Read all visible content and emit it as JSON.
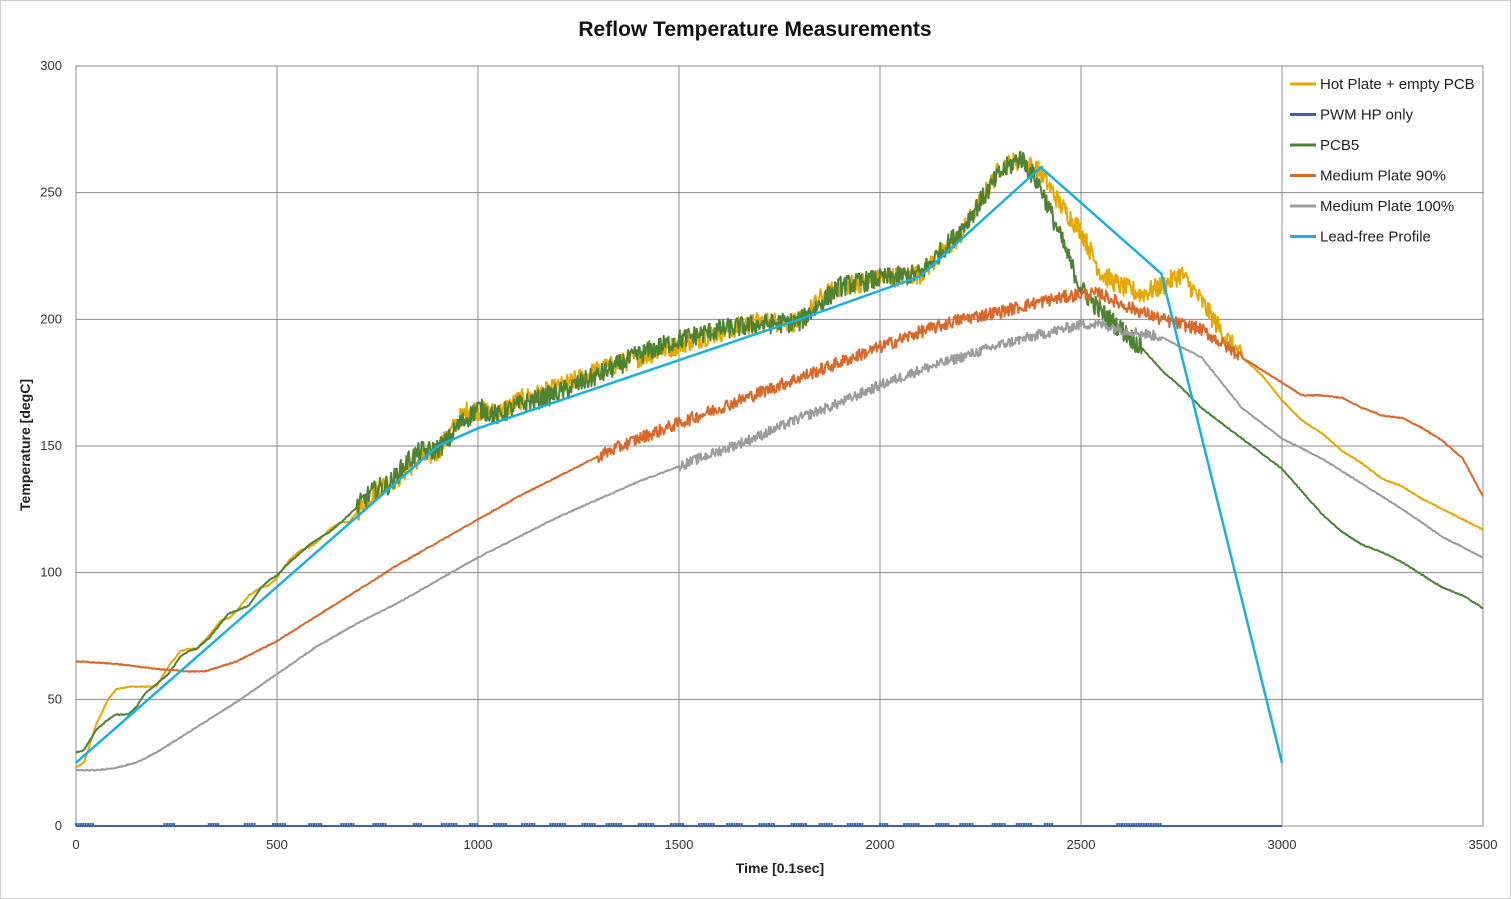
{
  "chart_data": {
    "type": "line",
    "title": "Reflow Temperature Measurements",
    "xlabel": "Time [0.1sec]",
    "ylabel": "Temperature [degC]",
    "xlim": [
      0,
      3500
    ],
    "ylim": [
      0,
      300
    ],
    "xticks": [
      0,
      500,
      1000,
      1500,
      2000,
      2500,
      3000,
      3500
    ],
    "yticks": [
      0,
      50,
      100,
      150,
      200,
      250,
      300
    ],
    "grid": true,
    "legend_position": "top-right",
    "series": [
      {
        "name": "Hot Plate + empty PCB",
        "color": "#E6A800",
        "noise": 4,
        "noise_ranges": [
          [
            700,
            2900
          ]
        ],
        "x": [
          0,
          20,
          50,
          80,
          100,
          130,
          160,
          200,
          230,
          260,
          280,
          300,
          330,
          360,
          380,
          400,
          430,
          460,
          480,
          500,
          530,
          560,
          580,
          600,
          630,
          660,
          680,
          700,
          730,
          760,
          780,
          800,
          830,
          860,
          880,
          900,
          930,
          950,
          980,
          1000,
          1050,
          1100,
          1200,
          1300,
          1400,
          1500,
          1600,
          1700,
          1800,
          1850,
          1900,
          2000,
          2100,
          2200,
          2300,
          2350,
          2400,
          2450,
          2500,
          2550,
          2600,
          2650,
          2700,
          2750,
          2800,
          2850,
          2900,
          2950,
          3000,
          3050,
          3100,
          3150,
          3200,
          3250,
          3300,
          3350,
          3400,
          3450,
          3500
        ],
        "y": [
          23,
          25,
          40,
          50,
          54,
          55,
          55,
          55,
          63,
          69,
          70,
          70,
          75,
          81,
          82,
          85,
          91,
          94,
          95,
          98,
          105,
          109,
          110,
          112,
          117,
          120,
          120,
          124,
          130,
          134,
          136,
          137,
          142,
          145,
          146,
          148,
          155,
          160,
          165,
          164,
          163,
          168,
          173,
          180,
          185,
          190,
          195,
          199,
          199,
          208,
          213,
          216,
          218,
          233,
          260,
          263,
          258,
          245,
          235,
          218,
          213,
          210,
          213,
          218,
          207,
          195,
          185,
          178,
          168,
          160,
          155,
          148,
          143,
          137,
          134,
          129,
          125,
          121,
          117
        ]
      },
      {
        "name": "PWM HP only",
        "color": "#3A62B0",
        "noise": 0,
        "x": [
          0,
          3000
        ],
        "y": [
          0,
          0
        ],
        "pulses": [
          [
            0,
            45
          ],
          [
            220,
            245
          ],
          [
            330,
            355
          ],
          [
            420,
            445
          ],
          [
            490,
            520
          ],
          [
            580,
            610
          ],
          [
            660,
            690
          ],
          [
            740,
            770
          ],
          [
            840,
            860
          ],
          [
            910,
            950
          ],
          [
            980,
            1000
          ],
          [
            1040,
            1070
          ],
          [
            1110,
            1140
          ],
          [
            1180,
            1220
          ],
          [
            1260,
            1290
          ],
          [
            1320,
            1360
          ],
          [
            1400,
            1440
          ],
          [
            1480,
            1510
          ],
          [
            1550,
            1590
          ],
          [
            1620,
            1660
          ],
          [
            1700,
            1740
          ],
          [
            1780,
            1820
          ],
          [
            1850,
            1880
          ],
          [
            1920,
            1960
          ],
          [
            2000,
            2020
          ],
          [
            2060,
            2100
          ],
          [
            2140,
            2170
          ],
          [
            2200,
            2230
          ],
          [
            2280,
            2310
          ],
          [
            2340,
            2380
          ],
          [
            2410,
            2430
          ],
          [
            2590,
            2700
          ]
        ]
      },
      {
        "name": "PCB5",
        "color": "#4E8235",
        "noise": 4,
        "noise_ranges": [
          [
            700,
            2650
          ]
        ],
        "x": [
          0,
          20,
          50,
          80,
          100,
          130,
          150,
          170,
          200,
          230,
          260,
          280,
          300,
          330,
          360,
          380,
          400,
          430,
          460,
          480,
          500,
          530,
          560,
          580,
          600,
          630,
          660,
          680,
          700,
          730,
          760,
          780,
          800,
          830,
          860,
          880,
          900,
          930,
          950,
          980,
          1000,
          1050,
          1100,
          1200,
          1300,
          1400,
          1500,
          1600,
          1700,
          1800,
          1850,
          1900,
          2000,
          2100,
          2200,
          2300,
          2350,
          2400,
          2450,
          2500,
          2550,
          2600,
          2650,
          2700,
          2750,
          2800,
          2850,
          2900,
          2950,
          3000,
          3050,
          3100,
          3150,
          3200,
          3250,
          3300,
          3350,
          3400,
          3450,
          3500
        ],
        "y": [
          29,
          30,
          38,
          42,
          44,
          44,
          47,
          52,
          56,
          60,
          67,
          69,
          70,
          74,
          80,
          84,
          85,
          87,
          94,
          97,
          99,
          104,
          108,
          111,
          113,
          116,
          120,
          123,
          126,
          131,
          134,
          135,
          139,
          145,
          148,
          148,
          149,
          153,
          158,
          162,
          165,
          162,
          166,
          171,
          178,
          186,
          192,
          196,
          198,
          199,
          206,
          213,
          216,
          218,
          235,
          258,
          264,
          252,
          232,
          212,
          203,
          196,
          189,
          180,
          173,
          165,
          159,
          153,
          147,
          141,
          132,
          123,
          116,
          111,
          108,
          104,
          99,
          94,
          91,
          86
        ]
      },
      {
        "name": "Medium Plate 90%",
        "color": "#D9692A",
        "noise": 2.5,
        "noise_ranges": [
          [
            1300,
            2900
          ]
        ],
        "x": [
          0,
          100,
          200,
          280,
          320,
          400,
          500,
          600,
          700,
          800,
          900,
          1000,
          1100,
          1200,
          1300,
          1400,
          1500,
          1600,
          1700,
          1800,
          1900,
          2000,
          2100,
          2200,
          2300,
          2400,
          2500,
          2550,
          2600,
          2700,
          2800,
          2900,
          3000,
          3050,
          3100,
          3150,
          3200,
          3250,
          3300,
          3350,
          3400,
          3450,
          3500
        ],
        "y": [
          65,
          64,
          62,
          61,
          61,
          65,
          73,
          83,
          93,
          103,
          112,
          121,
          130,
          138,
          146,
          153,
          159,
          165,
          171,
          177,
          183,
          189,
          195,
          200,
          203,
          207,
          210,
          210,
          206,
          200,
          196,
          185,
          175,
          170,
          170,
          169,
          165,
          162,
          161,
          157,
          152,
          145,
          130
        ]
      },
      {
        "name": "Medium Plate 100%",
        "color": "#9C9C9C",
        "noise": 2,
        "noise_ranges": [
          [
            1500,
            2700
          ]
        ],
        "x": [
          0,
          50,
          100,
          150,
          200,
          300,
          400,
          500,
          600,
          700,
          800,
          900,
          1000,
          1100,
          1200,
          1300,
          1400,
          1500,
          1600,
          1700,
          1800,
          1900,
          2000,
          2100,
          2200,
          2300,
          2400,
          2500,
          2550,
          2600,
          2700,
          2800,
          2900,
          3000,
          3050,
          3100,
          3200,
          3300,
          3400,
          3500
        ],
        "y": [
          22,
          22,
          23,
          25,
          29,
          39,
          49,
          60,
          71,
          80,
          88,
          97,
          106,
          114,
          122,
          129,
          136,
          142,
          148,
          154,
          161,
          167,
          174,
          180,
          185,
          190,
          194,
          198,
          198,
          196,
          193,
          185,
          165,
          153,
          149,
          145,
          135,
          125,
          114,
          106
        ]
      },
      {
        "name": "Lead-free Profile",
        "color": "#1AB0E0",
        "noise": 0,
        "x": [
          0,
          900,
          1000,
          1800,
          2100,
          2400,
          2700,
          3000
        ],
        "y": [
          25,
          150,
          157,
          200,
          217,
          260,
          218,
          25
        ]
      }
    ]
  }
}
